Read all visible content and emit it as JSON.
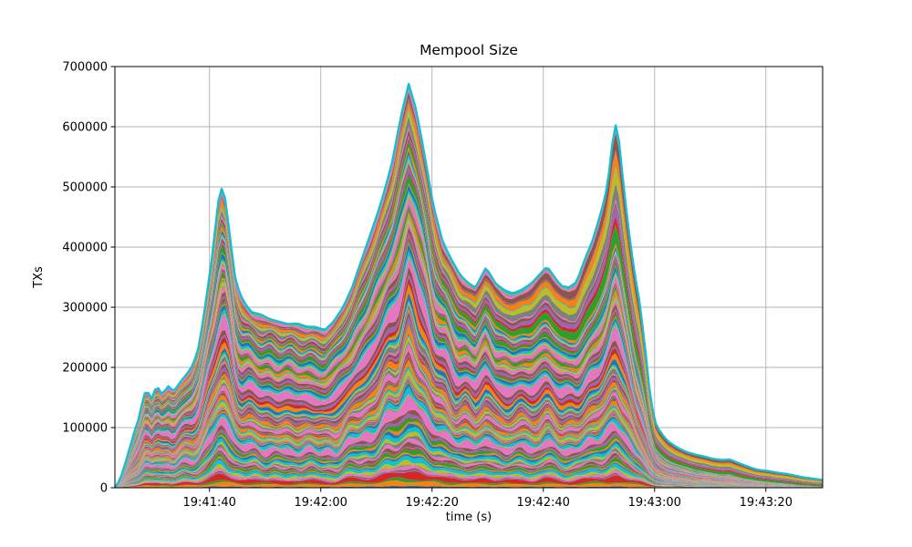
{
  "figure": {
    "background": "#ffffff"
  },
  "chart_data": {
    "type": "area",
    "stacked": true,
    "title": "Mempool Size",
    "xlabel": "time (s)",
    "ylabel": "TXs",
    "ylim": [
      0,
      700000
    ],
    "ytick_values": [
      0,
      100000,
      200000,
      300000,
      400000,
      500000,
      600000,
      700000
    ],
    "ytick_labels": [
      "0",
      "100000",
      "200000",
      "300000",
      "400000",
      "500000",
      "600000",
      "700000"
    ],
    "xtick_labels": [
      "19:41:40",
      "19:42:00",
      "19:42:20",
      "19:42:40",
      "19:43:00",
      "19:43:20"
    ],
    "xtick_seconds": [
      17,
      37,
      57,
      77,
      97,
      117
    ],
    "x_start_time": "19:41:23",
    "x_end_time": "19:43:30",
    "x_span_seconds": 127.2,
    "grid": true,
    "grid_color": "#b0b0b0",
    "legend_position": "none",
    "layers": 120,
    "palette": [
      "#1f77b4",
      "#ff7f0e",
      "#2ca02c",
      "#d62728",
      "#9467bd",
      "#8c564b",
      "#e377c2",
      "#7f7f7f",
      "#bcbd22",
      "#17becf"
    ],
    "envelope_color": "#17becf",
    "envelope": {
      "seconds": [
        0,
        1.0,
        2.0,
        2.8,
        3.4,
        4.3,
        4.9,
        5.6,
        6.6,
        7.5,
        8.5,
        9.7,
        10.5,
        11.6,
        13.0,
        14.1,
        15.1,
        16.2,
        17.4,
        18.4,
        18.9,
        19.7,
        20.5,
        21.6,
        22.5,
        23.6,
        24.6,
        26.2,
        27.9,
        29.5,
        31.1,
        32.8,
        34.4,
        36.1,
        37.7,
        39.3,
        41.0,
        42.6,
        44.9,
        46.6,
        48.2,
        49.8,
        51.5,
        52.8,
        54.1,
        55.6,
        57.2,
        58.9,
        60.5,
        62.1,
        63.8,
        64.8,
        66.7,
        68.4,
        70.0,
        71.6,
        73.3,
        74.9,
        76.4,
        77.7,
        79.0,
        80.3,
        81.6,
        83.0,
        84.3,
        85.9,
        87.5,
        88.5,
        89.2,
        89.8,
        90.5,
        91.5,
        92.5,
        93.3,
        94.1,
        95.1,
        96.1,
        97.0,
        98.0,
        99.3,
        101.0,
        102.6,
        104.3,
        105.9,
        107.5,
        109.2,
        110.5,
        112.1,
        113.8,
        115.4,
        117.4,
        119.0,
        120.7,
        122.3,
        123.9,
        125.6,
        127.2
      ],
      "txs": [
        0,
        15000,
        45000,
        70000,
        91000,
        115000,
        141000,
        164000,
        148000,
        170000,
        155000,
        170000,
        159000,
        174000,
        190000,
        205000,
        235000,
        300000,
        380000,
        460000,
        502000,
        488000,
        430000,
        350000,
        321000,
        303000,
        292000,
        288000,
        280000,
        276000,
        272000,
        273000,
        268000,
        267000,
        262000,
        276000,
        300000,
        332000,
        394000,
        439000,
        485000,
        540000,
        621000,
        671000,
        630000,
        556000,
        470000,
        409000,
        379000,
        353000,
        338000,
        333000,
        366000,
        340000,
        328000,
        323000,
        330000,
        340000,
        355000,
        368000,
        350000,
        335000,
        333000,
        342000,
        376000,
        412000,
        462000,
        500000,
        553000,
        609000,
        585000,
        495000,
        417000,
        361000,
        321000,
        250000,
        160000,
        110000,
        93000,
        78000,
        67000,
        60000,
        55000,
        52000,
        48000,
        46000,
        47000,
        41000,
        35000,
        30000,
        28000,
        25000,
        23000,
        20000,
        17000,
        15000,
        13000
      ]
    }
  }
}
